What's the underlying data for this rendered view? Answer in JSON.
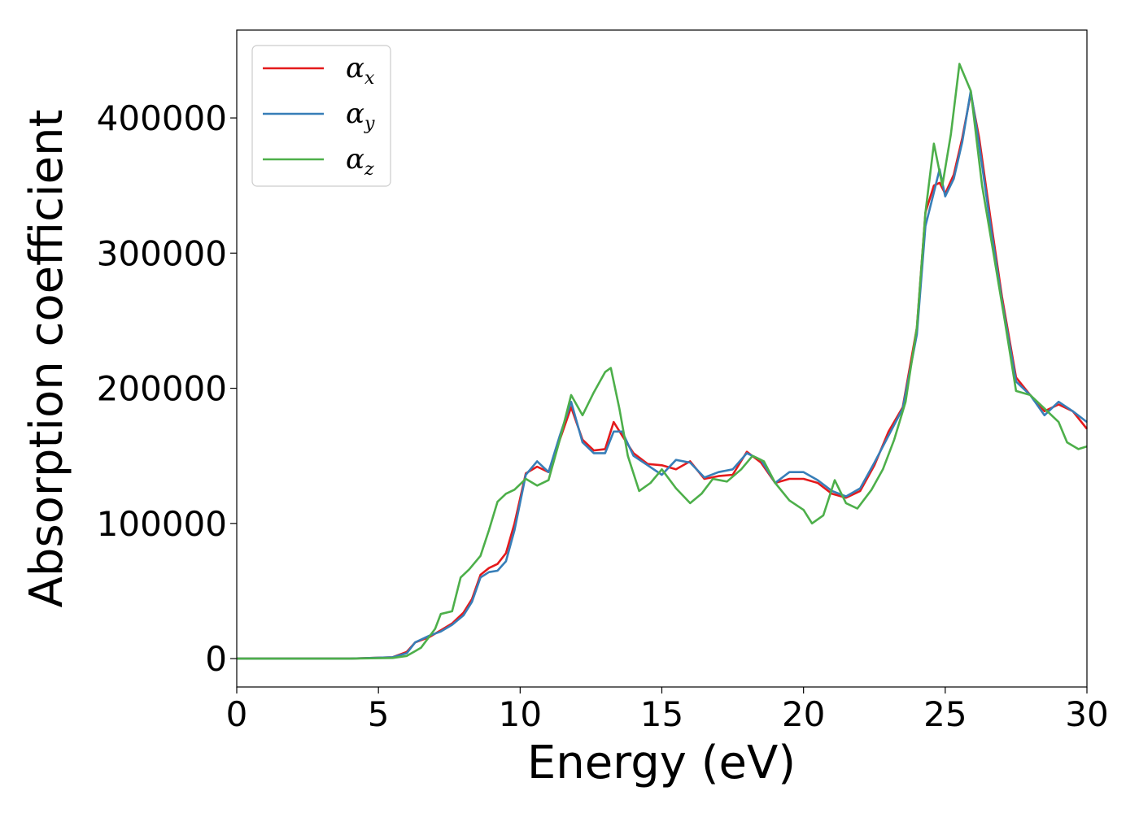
{
  "chart_data": {
    "type": "line",
    "xlabel": "Energy (eV)",
    "ylabel": "Absorption coefficient",
    "xlim": [
      0,
      30
    ],
    "ylim": [
      -21000,
      465000
    ],
    "x_ticks": [
      0,
      5,
      10,
      15,
      20,
      25,
      30
    ],
    "x_tick_labels": [
      "0",
      "5",
      "10",
      "15",
      "20",
      "25",
      "30"
    ],
    "y_ticks": [
      0,
      100000,
      200000,
      300000,
      400000
    ],
    "y_tick_labels": [
      "0",
      "100000",
      "200000",
      "300000",
      "400000"
    ],
    "grid": false,
    "legend_position": "top-left",
    "series": [
      {
        "name": "α",
        "subscript": "x",
        "color": "#e41a1c",
        "points": [
          [
            0,
            0
          ],
          [
            4,
            0
          ],
          [
            5.5,
            1000
          ],
          [
            6,
            5000
          ],
          [
            6.3,
            12000
          ],
          [
            6.8,
            16000
          ],
          [
            7.2,
            21000
          ],
          [
            7.6,
            26000
          ],
          [
            8,
            34000
          ],
          [
            8.3,
            44000
          ],
          [
            8.6,
            62000
          ],
          [
            8.9,
            67000
          ],
          [
            9.2,
            70000
          ],
          [
            9.5,
            78000
          ],
          [
            9.8,
            100000
          ],
          [
            10.2,
            137000
          ],
          [
            10.6,
            142000
          ],
          [
            11,
            138000
          ],
          [
            11.4,
            162000
          ],
          [
            11.8,
            186000
          ],
          [
            12.2,
            162000
          ],
          [
            12.6,
            154000
          ],
          [
            13,
            155000
          ],
          [
            13.3,
            175000
          ],
          [
            13.6,
            165000
          ],
          [
            14,
            152000
          ],
          [
            14.5,
            144000
          ],
          [
            15,
            143000
          ],
          [
            15.5,
            140000
          ],
          [
            16,
            146000
          ],
          [
            16.5,
            133000
          ],
          [
            17,
            135000
          ],
          [
            17.5,
            136000
          ],
          [
            18,
            153000
          ],
          [
            18.5,
            145000
          ],
          [
            19,
            130000
          ],
          [
            19.5,
            133000
          ],
          [
            20,
            133000
          ],
          [
            20.5,
            130000
          ],
          [
            21,
            122000
          ],
          [
            21.5,
            119000
          ],
          [
            22,
            124000
          ],
          [
            22.5,
            143000
          ],
          [
            23,
            168000
          ],
          [
            23.5,
            186000
          ],
          [
            24,
            245000
          ],
          [
            24.3,
            330000
          ],
          [
            24.6,
            350000
          ],
          [
            24.8,
            352000
          ],
          [
            25,
            344000
          ],
          [
            25.3,
            358000
          ],
          [
            25.6,
            385000
          ],
          [
            25.9,
            418000
          ],
          [
            26.2,
            385000
          ],
          [
            26.6,
            325000
          ],
          [
            27,
            268000
          ],
          [
            27.5,
            208000
          ],
          [
            28,
            195000
          ],
          [
            28.5,
            183000
          ],
          [
            29,
            188000
          ],
          [
            29.5,
            183000
          ],
          [
            30,
            170000
          ]
        ]
      },
      {
        "name": "α",
        "subscript": "y",
        "color": "#377eb8",
        "points": [
          [
            0,
            0
          ],
          [
            4,
            0
          ],
          [
            5.5,
            1000
          ],
          [
            6,
            4000
          ],
          [
            6.3,
            12000
          ],
          [
            6.8,
            17000
          ],
          [
            7.2,
            20000
          ],
          [
            7.6,
            25000
          ],
          [
            8,
            32000
          ],
          [
            8.3,
            42000
          ],
          [
            8.6,
            60000
          ],
          [
            8.9,
            64000
          ],
          [
            9.2,
            65000
          ],
          [
            9.5,
            72000
          ],
          [
            9.8,
            95000
          ],
          [
            10.2,
            136000
          ],
          [
            10.6,
            146000
          ],
          [
            11,
            138000
          ],
          [
            11.4,
            165000
          ],
          [
            11.8,
            190000
          ],
          [
            12.2,
            160000
          ],
          [
            12.6,
            152000
          ],
          [
            13,
            152000
          ],
          [
            13.3,
            168000
          ],
          [
            13.6,
            168000
          ],
          [
            14,
            150000
          ],
          [
            14.5,
            143000
          ],
          [
            15,
            136000
          ],
          [
            15.5,
            147000
          ],
          [
            16,
            145000
          ],
          [
            16.5,
            134000
          ],
          [
            17,
            138000
          ],
          [
            17.5,
            140000
          ],
          [
            18,
            152000
          ],
          [
            18.5,
            147000
          ],
          [
            19,
            130000
          ],
          [
            19.5,
            138000
          ],
          [
            20,
            138000
          ],
          [
            20.5,
            132000
          ],
          [
            21,
            124000
          ],
          [
            21.5,
            120000
          ],
          [
            22,
            126000
          ],
          [
            22.5,
            145000
          ],
          [
            23,
            165000
          ],
          [
            23.5,
            185000
          ],
          [
            24,
            240000
          ],
          [
            24.3,
            320000
          ],
          [
            24.6,
            345000
          ],
          [
            24.8,
            362000
          ],
          [
            25,
            342000
          ],
          [
            25.3,
            355000
          ],
          [
            25.6,
            382000
          ],
          [
            25.9,
            420000
          ],
          [
            26.2,
            380000
          ],
          [
            26.6,
            320000
          ],
          [
            27,
            265000
          ],
          [
            27.5,
            205000
          ],
          [
            28,
            195000
          ],
          [
            28.5,
            180000
          ],
          [
            29,
            190000
          ],
          [
            29.5,
            183000
          ],
          [
            30,
            175000
          ]
        ]
      },
      {
        "name": "α",
        "subscript": "z",
        "color": "#4daf4a",
        "points": [
          [
            0,
            0
          ],
          [
            4,
            0
          ],
          [
            5.5,
            500
          ],
          [
            6,
            2000
          ],
          [
            6.5,
            8000
          ],
          [
            7,
            22000
          ],
          [
            7.2,
            33000
          ],
          [
            7.6,
            35000
          ],
          [
            7.9,
            60000
          ],
          [
            8.2,
            66000
          ],
          [
            8.6,
            76000
          ],
          [
            8.9,
            95000
          ],
          [
            9.2,
            116000
          ],
          [
            9.5,
            122000
          ],
          [
            9.8,
            125000
          ],
          [
            10.2,
            133000
          ],
          [
            10.6,
            128000
          ],
          [
            11,
            132000
          ],
          [
            11.4,
            162000
          ],
          [
            11.8,
            195000
          ],
          [
            12.2,
            180000
          ],
          [
            12.6,
            197000
          ],
          [
            13,
            212000
          ],
          [
            13.2,
            215000
          ],
          [
            13.5,
            185000
          ],
          [
            13.8,
            150000
          ],
          [
            14.2,
            124000
          ],
          [
            14.6,
            130000
          ],
          [
            15,
            140000
          ],
          [
            15.5,
            126000
          ],
          [
            16,
            115000
          ],
          [
            16.4,
            122000
          ],
          [
            16.8,
            133000
          ],
          [
            17.3,
            131000
          ],
          [
            17.8,
            140000
          ],
          [
            18.2,
            150000
          ],
          [
            18.6,
            146000
          ],
          [
            19,
            130000
          ],
          [
            19.5,
            117000
          ],
          [
            20,
            110000
          ],
          [
            20.3,
            100000
          ],
          [
            20.7,
            106000
          ],
          [
            21.1,
            132000
          ],
          [
            21.5,
            115000
          ],
          [
            21.9,
            111000
          ],
          [
            22.4,
            125000
          ],
          [
            22.8,
            140000
          ],
          [
            23.2,
            162000
          ],
          [
            23.6,
            190000
          ],
          [
            24,
            245000
          ],
          [
            24.3,
            330000
          ],
          [
            24.6,
            381000
          ],
          [
            24.9,
            350000
          ],
          [
            25.2,
            388000
          ],
          [
            25.5,
            440000
          ],
          [
            25.9,
            420000
          ],
          [
            26.3,
            350000
          ],
          [
            26.7,
            300000
          ],
          [
            27.1,
            250000
          ],
          [
            27.5,
            198000
          ],
          [
            28,
            195000
          ],
          [
            28.5,
            185000
          ],
          [
            29,
            175000
          ],
          [
            29.3,
            160000
          ],
          [
            29.7,
            155000
          ],
          [
            30,
            157000
          ]
        ]
      }
    ]
  }
}
